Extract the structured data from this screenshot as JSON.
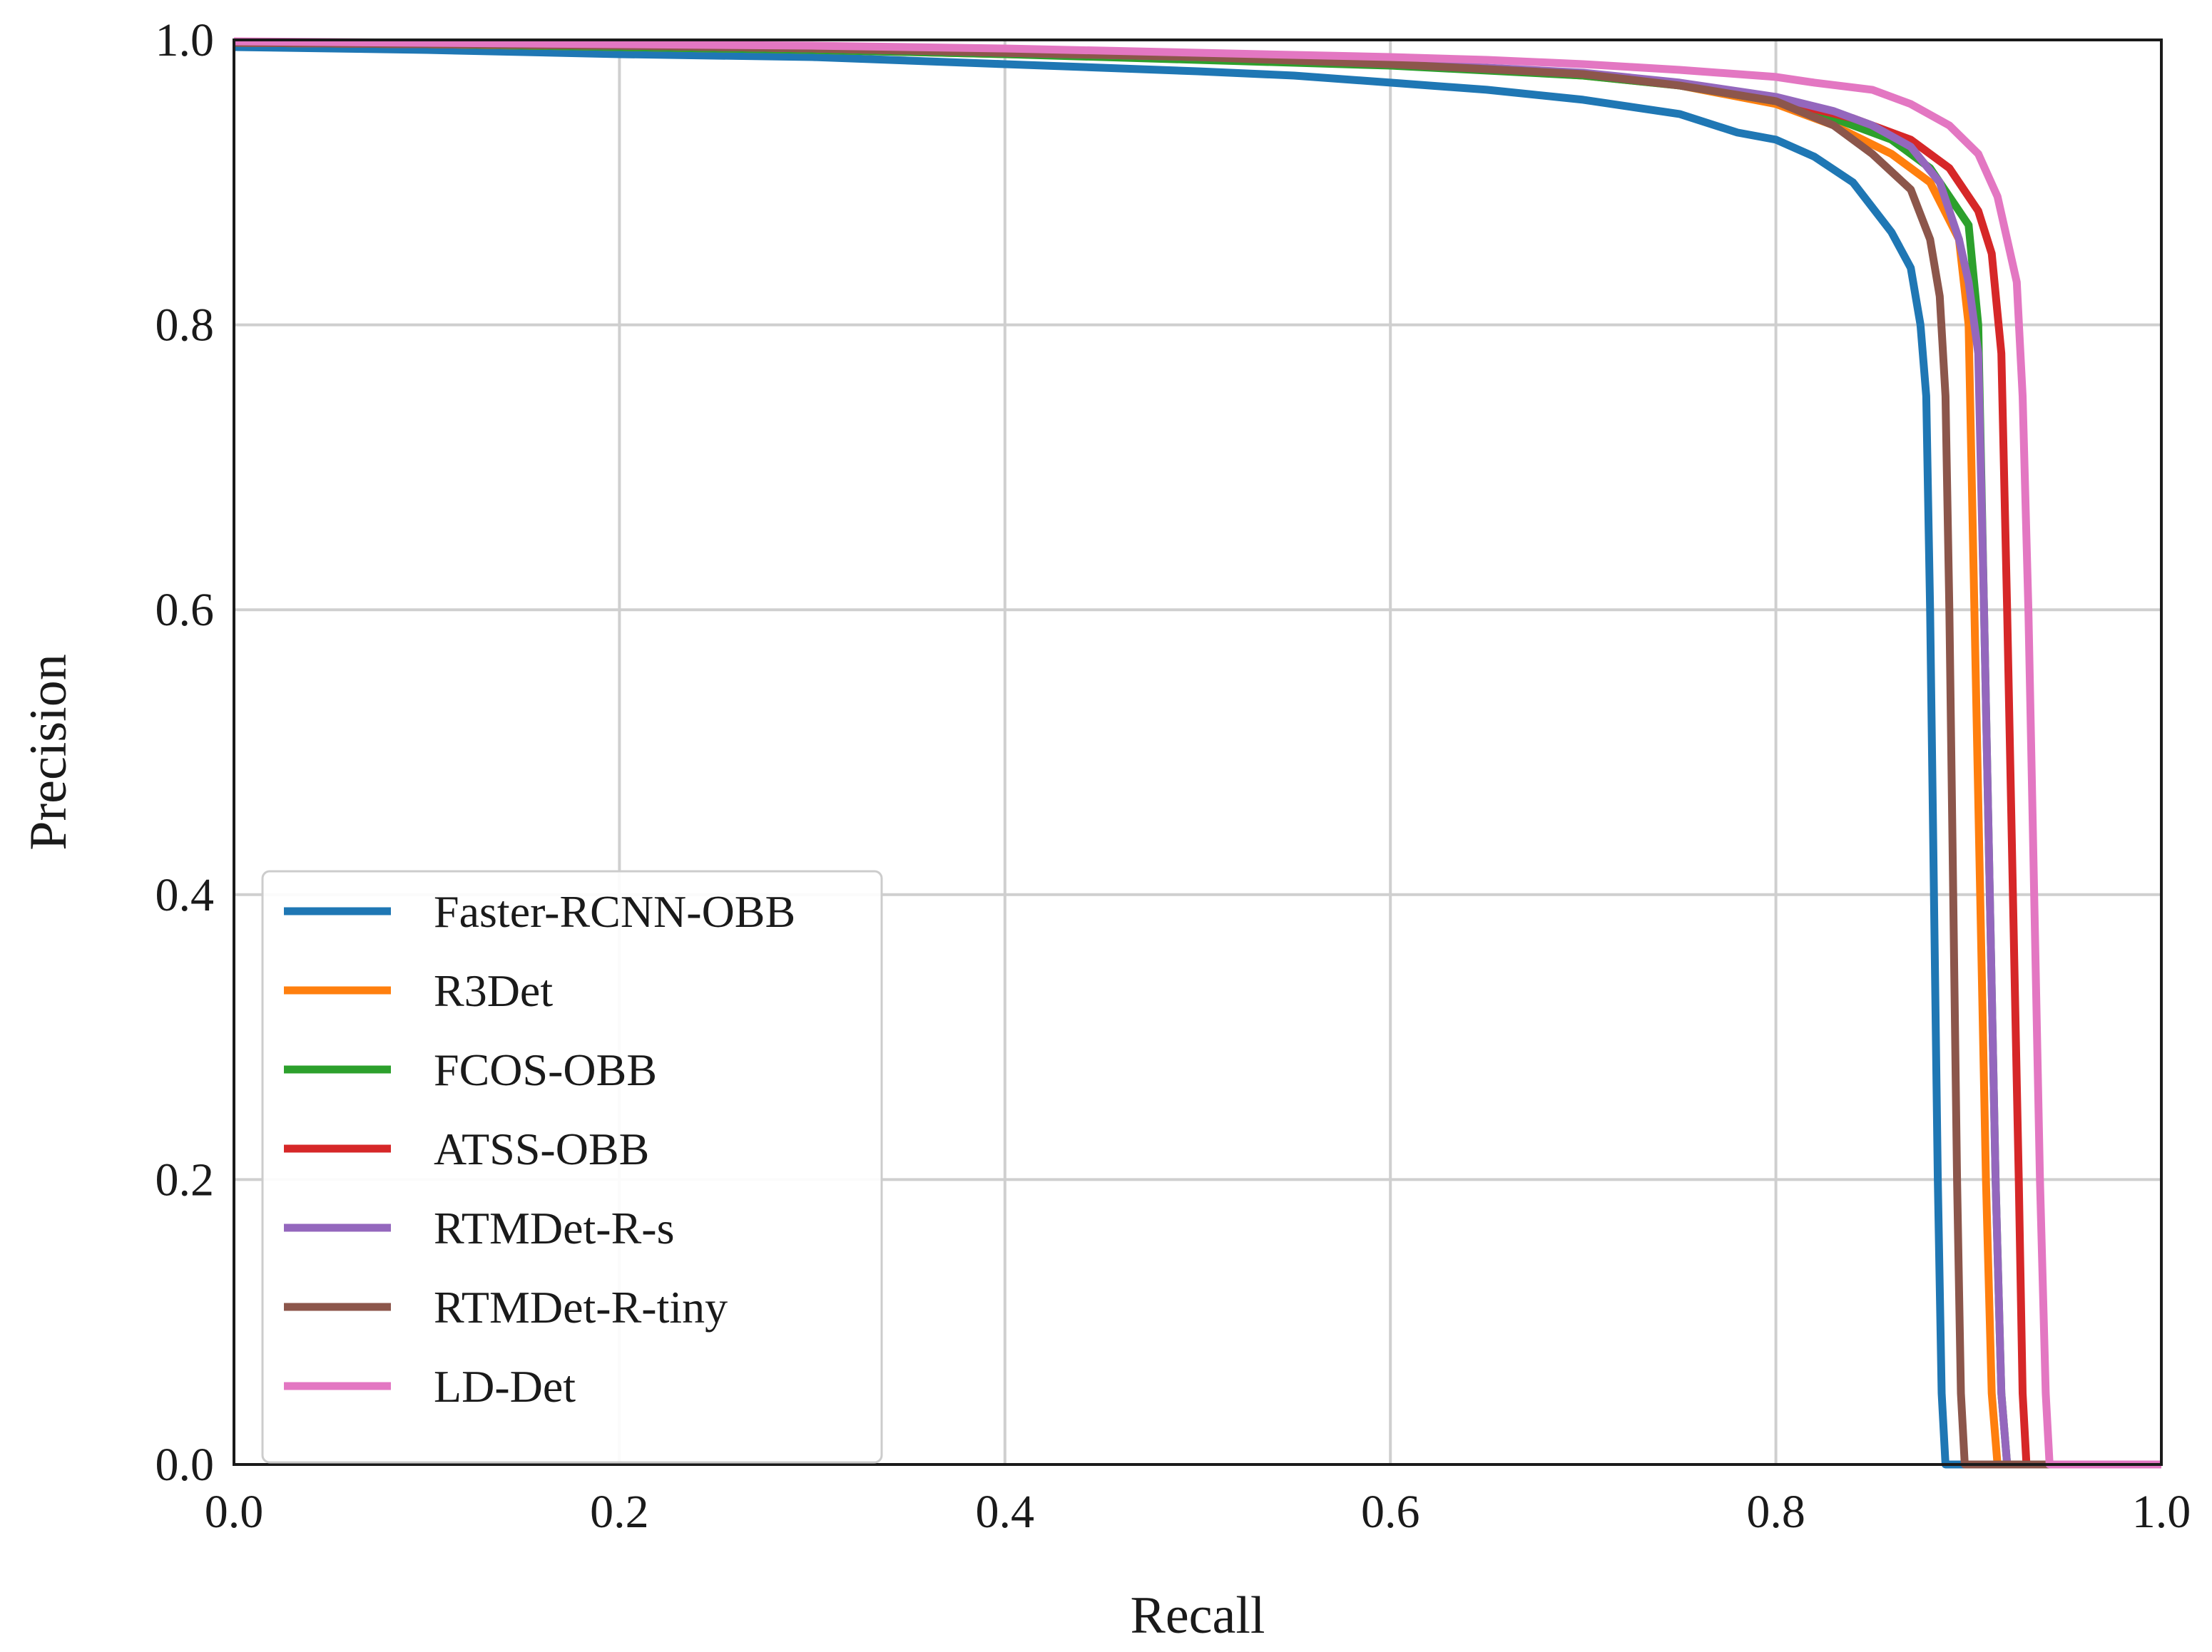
{
  "chart_data": {
    "type": "line",
    "title": "",
    "xlabel": "Recall",
    "ylabel": "Precision",
    "xlim": [
      0.0,
      1.0
    ],
    "ylim": [
      0.0,
      1.0
    ],
    "grid": true,
    "legend_position": "lower-left",
    "xticks": [
      "0.0",
      "0.2",
      "0.4",
      "0.6",
      "0.8",
      "1.0"
    ],
    "yticks": [
      "0.0",
      "0.2",
      "0.4",
      "0.6",
      "0.8",
      "1.0"
    ],
    "series": [
      {
        "name": "Faster-RCNN-OBB",
        "color": "#1f77b4",
        "points": [
          [
            0.0,
            0.995
          ],
          [
            0.1,
            0.993
          ],
          [
            0.2,
            0.99
          ],
          [
            0.3,
            0.988
          ],
          [
            0.4,
            0.983
          ],
          [
            0.5,
            0.978
          ],
          [
            0.55,
            0.975
          ],
          [
            0.6,
            0.97
          ],
          [
            0.65,
            0.965
          ],
          [
            0.7,
            0.958
          ],
          [
            0.75,
            0.948
          ],
          [
            0.78,
            0.935
          ],
          [
            0.8,
            0.93
          ],
          [
            0.82,
            0.918
          ],
          [
            0.84,
            0.9
          ],
          [
            0.86,
            0.865
          ],
          [
            0.87,
            0.84
          ],
          [
            0.875,
            0.8
          ],
          [
            0.878,
            0.75
          ],
          [
            0.88,
            0.6
          ],
          [
            0.882,
            0.4
          ],
          [
            0.884,
            0.2
          ],
          [
            0.886,
            0.05
          ],
          [
            0.888,
            0.0
          ],
          [
            0.895,
            0.0
          ],
          [
            1.0,
            0.0
          ]
        ]
      },
      {
        "name": "R3Det",
        "color": "#ff7f0e",
        "points": [
          [
            0.0,
            0.998
          ],
          [
            0.1,
            0.997
          ],
          [
            0.2,
            0.995
          ],
          [
            0.3,
            0.993
          ],
          [
            0.4,
            0.99
          ],
          [
            0.5,
            0.987
          ],
          [
            0.6,
            0.983
          ],
          [
            0.7,
            0.975
          ],
          [
            0.75,
            0.968
          ],
          [
            0.8,
            0.955
          ],
          [
            0.83,
            0.94
          ],
          [
            0.86,
            0.92
          ],
          [
            0.88,
            0.9
          ],
          [
            0.895,
            0.86
          ],
          [
            0.9,
            0.8
          ],
          [
            0.903,
            0.6
          ],
          [
            0.906,
            0.4
          ],
          [
            0.909,
            0.2
          ],
          [
            0.912,
            0.05
          ],
          [
            0.915,
            0.0
          ],
          [
            1.0,
            0.0
          ]
        ]
      },
      {
        "name": "FCOS-OBB",
        "color": "#2ca02c",
        "points": [
          [
            0.0,
            0.998
          ],
          [
            0.1,
            0.997
          ],
          [
            0.2,
            0.995
          ],
          [
            0.3,
            0.993
          ],
          [
            0.4,
            0.99
          ],
          [
            0.5,
            0.986
          ],
          [
            0.6,
            0.982
          ],
          [
            0.7,
            0.975
          ],
          [
            0.75,
            0.968
          ],
          [
            0.8,
            0.957
          ],
          [
            0.83,
            0.945
          ],
          [
            0.86,
            0.93
          ],
          [
            0.88,
            0.91
          ],
          [
            0.9,
            0.87
          ],
          [
            0.905,
            0.8
          ],
          [
            0.908,
            0.6
          ],
          [
            0.911,
            0.4
          ],
          [
            0.914,
            0.2
          ],
          [
            0.917,
            0.05
          ],
          [
            0.92,
            0.0
          ],
          [
            1.0,
            0.0
          ]
        ]
      },
      {
        "name": "ATSS-OBB",
        "color": "#d62728",
        "points": [
          [
            0.0,
            0.998
          ],
          [
            0.1,
            0.997
          ],
          [
            0.2,
            0.996
          ],
          [
            0.3,
            0.994
          ],
          [
            0.4,
            0.991
          ],
          [
            0.5,
            0.988
          ],
          [
            0.6,
            0.984
          ],
          [
            0.7,
            0.976
          ],
          [
            0.75,
            0.969
          ],
          [
            0.8,
            0.958
          ],
          [
            0.84,
            0.945
          ],
          [
            0.87,
            0.93
          ],
          [
            0.89,
            0.91
          ],
          [
            0.905,
            0.88
          ],
          [
            0.912,
            0.85
          ],
          [
            0.917,
            0.78
          ],
          [
            0.92,
            0.6
          ],
          [
            0.923,
            0.4
          ],
          [
            0.926,
            0.2
          ],
          [
            0.928,
            0.05
          ],
          [
            0.93,
            0.0
          ],
          [
            1.0,
            0.0
          ]
        ]
      },
      {
        "name": "RTMDet-R-s",
        "color": "#9467bd",
        "points": [
          [
            0.0,
            0.998
          ],
          [
            0.1,
            0.997
          ],
          [
            0.2,
            0.996
          ],
          [
            0.3,
            0.994
          ],
          [
            0.4,
            0.991
          ],
          [
            0.5,
            0.988
          ],
          [
            0.6,
            0.984
          ],
          [
            0.7,
            0.977
          ],
          [
            0.75,
            0.97
          ],
          [
            0.8,
            0.96
          ],
          [
            0.83,
            0.95
          ],
          [
            0.85,
            0.94
          ],
          [
            0.87,
            0.925
          ],
          [
            0.885,
            0.9
          ],
          [
            0.895,
            0.86
          ],
          [
            0.9,
            0.83
          ],
          [
            0.905,
            0.78
          ],
          [
            0.908,
            0.6
          ],
          [
            0.911,
            0.4
          ],
          [
            0.914,
            0.2
          ],
          [
            0.917,
            0.05
          ],
          [
            0.92,
            0.0
          ],
          [
            1.0,
            0.0
          ]
        ]
      },
      {
        "name": "RTMDet-R-tiny",
        "color": "#8c564b",
        "points": [
          [
            0.0,
            0.998
          ],
          [
            0.1,
            0.997
          ],
          [
            0.2,
            0.996
          ],
          [
            0.3,
            0.994
          ],
          [
            0.4,
            0.991
          ],
          [
            0.5,
            0.988
          ],
          [
            0.6,
            0.983
          ],
          [
            0.7,
            0.976
          ],
          [
            0.75,
            0.968
          ],
          [
            0.8,
            0.957
          ],
          [
            0.83,
            0.94
          ],
          [
            0.85,
            0.92
          ],
          [
            0.87,
            0.895
          ],
          [
            0.88,
            0.86
          ],
          [
            0.885,
            0.82
          ],
          [
            0.888,
            0.75
          ],
          [
            0.89,
            0.6
          ],
          [
            0.892,
            0.4
          ],
          [
            0.894,
            0.2
          ],
          [
            0.896,
            0.05
          ],
          [
            0.898,
            0.0
          ],
          [
            1.0,
            0.0
          ]
        ]
      },
      {
        "name": "LD-Det",
        "color": "#e377c2",
        "points": [
          [
            0.0,
            0.999
          ],
          [
            0.1,
            0.998
          ],
          [
            0.2,
            0.997
          ],
          [
            0.3,
            0.996
          ],
          [
            0.4,
            0.994
          ],
          [
            0.5,
            0.991
          ],
          [
            0.6,
            0.988
          ],
          [
            0.65,
            0.986
          ],
          [
            0.7,
            0.983
          ],
          [
            0.75,
            0.979
          ],
          [
            0.8,
            0.974
          ],
          [
            0.82,
            0.97
          ],
          [
            0.85,
            0.965
          ],
          [
            0.87,
            0.955
          ],
          [
            0.89,
            0.94
          ],
          [
            0.905,
            0.92
          ],
          [
            0.915,
            0.89
          ],
          [
            0.92,
            0.86
          ],
          [
            0.925,
            0.83
          ],
          [
            0.928,
            0.75
          ],
          [
            0.931,
            0.6
          ],
          [
            0.934,
            0.4
          ],
          [
            0.937,
            0.2
          ],
          [
            0.94,
            0.05
          ],
          [
            0.942,
            0.0
          ],
          [
            1.0,
            0.0
          ]
        ]
      }
    ]
  }
}
